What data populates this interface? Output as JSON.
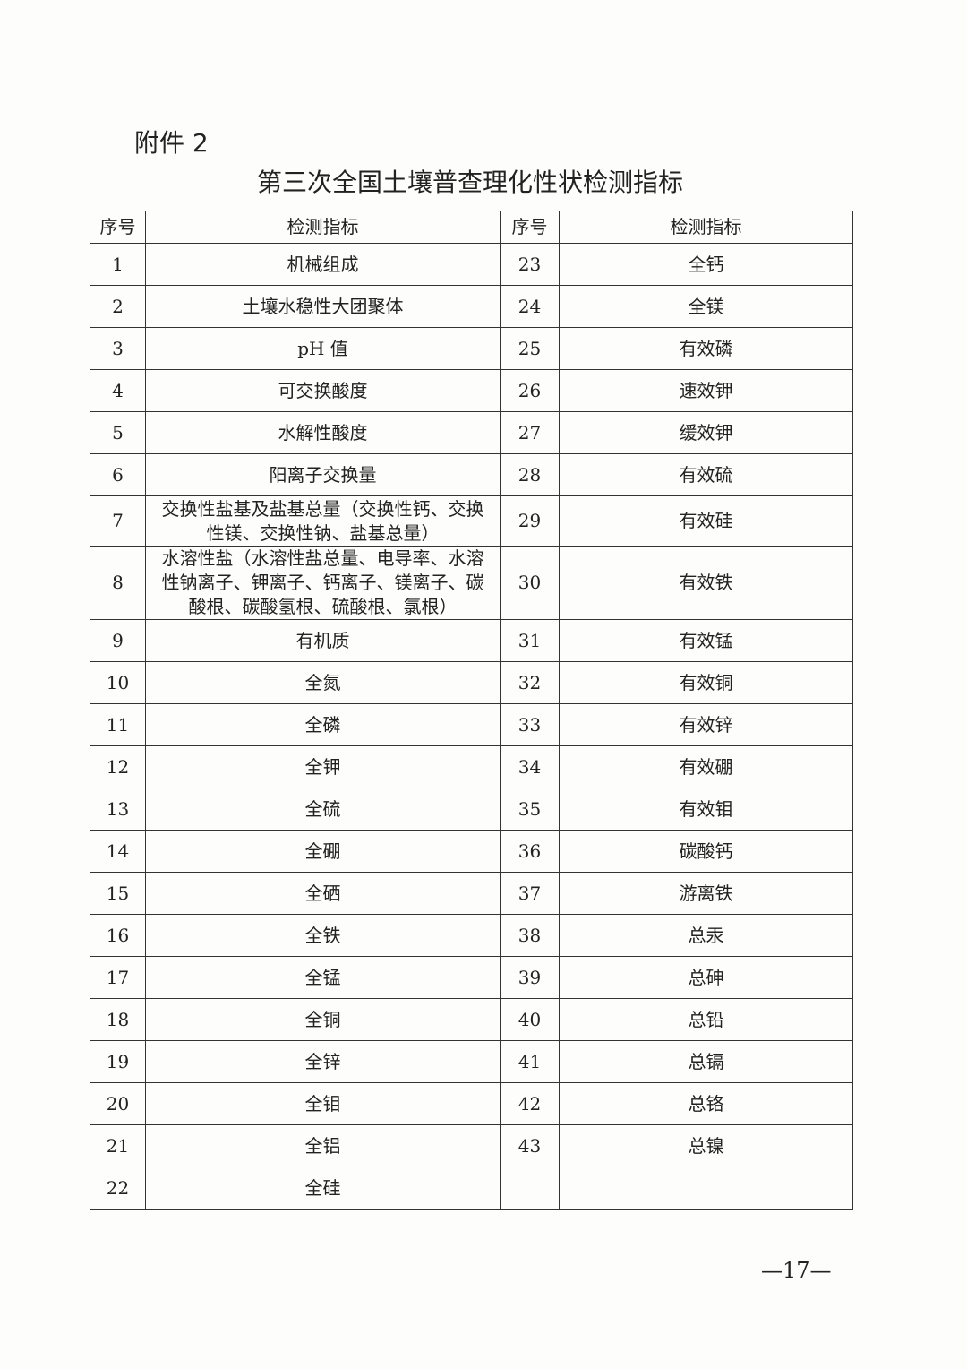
{
  "attachment_label": "附件 2",
  "title": "第三次全国土壤普查理化性状检测指标",
  "table": {
    "headers": [
      "序号",
      "检测指标",
      "序号",
      "检测指标"
    ],
    "rows": [
      [
        "1",
        "机械组成",
        "23",
        "全钙"
      ],
      [
        "2",
        "土壤水稳性大团聚体",
        "24",
        "全镁"
      ],
      [
        "3",
        "pH 值",
        "25",
        "有效磷"
      ],
      [
        "4",
        "可交换酸度",
        "26",
        "速效钾"
      ],
      [
        "5",
        "水解性酸度",
        "27",
        "缓效钾"
      ],
      [
        "6",
        "阳离子交换量",
        "28",
        "有效硫"
      ],
      [
        "7",
        "交换性盐基及盐基总量（交换性钙、交换性镁、交换性钠、盐基总量）",
        "29",
        "有效硅"
      ],
      [
        "8",
        "水溶性盐（水溶性盐总量、电导率、水溶性钠离子、钾离子、钙离子、镁离子、碳酸根、碳酸氢根、硫酸根、氯根）",
        "30",
        "有效铁"
      ],
      [
        "9",
        "有机质",
        "31",
        "有效锰"
      ],
      [
        "10",
        "全氮",
        "32",
        "有效铜"
      ],
      [
        "11",
        "全磷",
        "33",
        "有效锌"
      ],
      [
        "12",
        "全钾",
        "34",
        "有效硼"
      ],
      [
        "13",
        "全硫",
        "35",
        "有效钼"
      ],
      [
        "14",
        "全硼",
        "36",
        "碳酸钙"
      ],
      [
        "15",
        "全硒",
        "37",
        "游离铁"
      ],
      [
        "16",
        "全铁",
        "38",
        "总汞"
      ],
      [
        "17",
        "全锰",
        "39",
        "总砷"
      ],
      [
        "18",
        "全铜",
        "40",
        "总铅"
      ],
      [
        "19",
        "全锌",
        "41",
        "总镉"
      ],
      [
        "20",
        "全钼",
        "42",
        "总铬"
      ],
      [
        "21",
        "全铝",
        "43",
        "总镍"
      ],
      [
        "22",
        "全硅",
        "",
        ""
      ]
    ]
  },
  "page_number": "—17—"
}
